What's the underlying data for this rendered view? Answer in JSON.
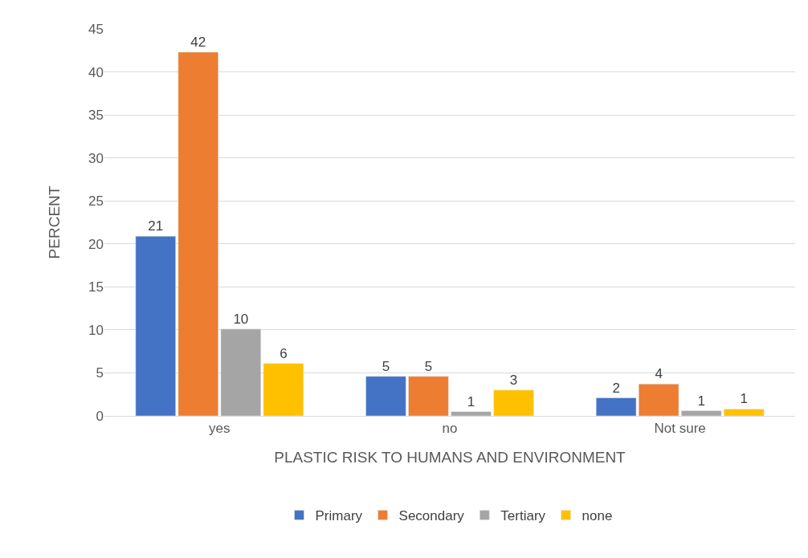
{
  "chart_data": {
    "type": "bar",
    "xlabel": "PLASTIC RISK TO HUMANS AND ENVIRONMENT",
    "ylabel": "PERCENT",
    "categories": [
      "yes",
      "no",
      "Not sure"
    ],
    "series": [
      {
        "name": "Primary",
        "color": "#4472c4",
        "values": [
          20.9,
          4.6,
          2.1
        ],
        "value_labels": [
          "21",
          "5",
          "2"
        ]
      },
      {
        "name": "Secondary",
        "color": "#ed7d31",
        "values": [
          42.3,
          4.6,
          3.7
        ],
        "value_labels": [
          "42",
          "5",
          "4"
        ]
      },
      {
        "name": "Tertiary",
        "color": "#a5a5a5",
        "values": [
          10.1,
          0.5,
          0.6
        ],
        "value_labels": [
          "10",
          "1",
          "1"
        ]
      },
      {
        "name": "none",
        "color": "#ffc000",
        "values": [
          6.1,
          3.0,
          0.8
        ],
        "value_labels": [
          "6",
          "3",
          "1"
        ]
      }
    ],
    "ylim": [
      0,
      45
    ],
    "yticks": [
      0,
      5,
      10,
      15,
      20,
      25,
      30,
      35,
      40,
      45
    ],
    "grid": "y",
    "legend": "bottom"
  }
}
